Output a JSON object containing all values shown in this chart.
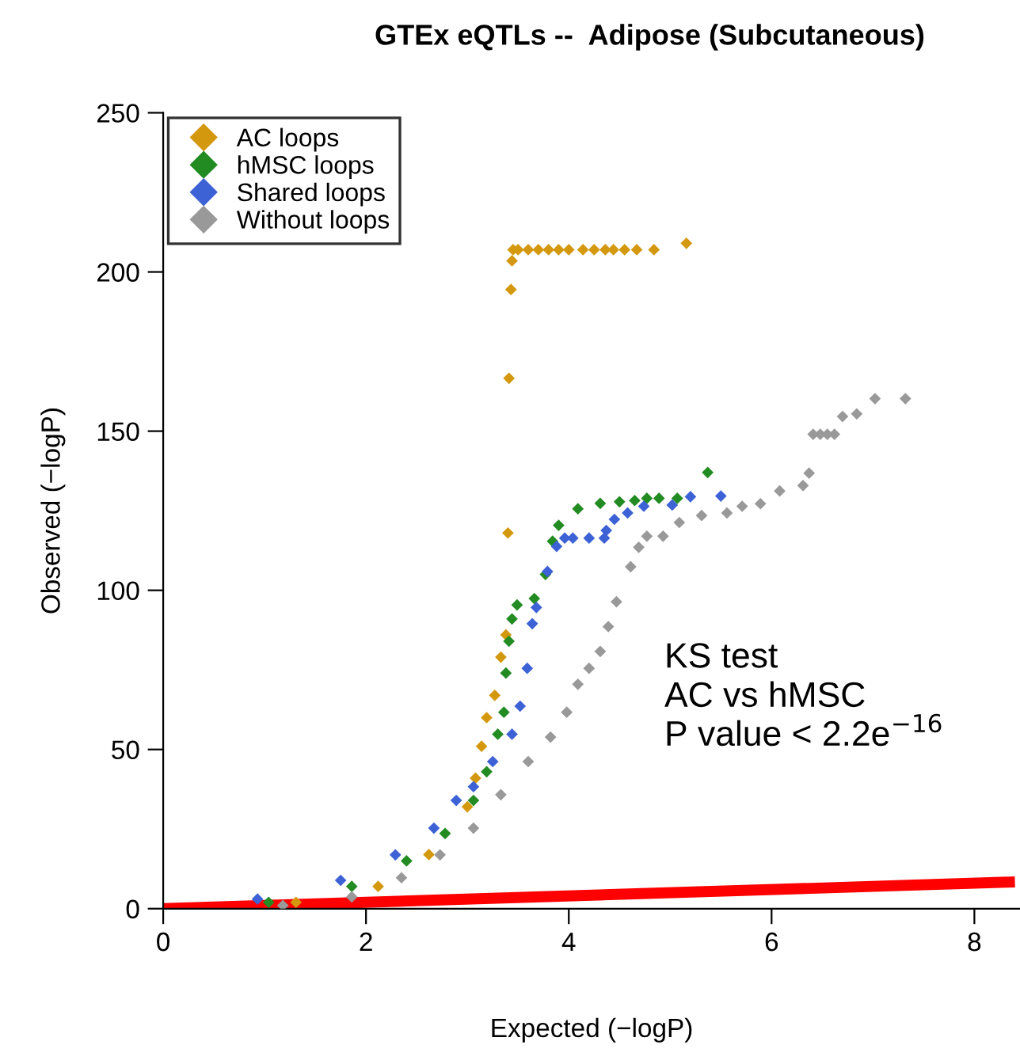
{
  "chart_data": {
    "type": "scatter",
    "title": "GTEx eQTLs --  Adipose (Subcutaneous)",
    "xlabel": "Expected (−logP)",
    "ylabel": "Observed (−logP)",
    "xlim": [
      0,
      8.45
    ],
    "ylim": [
      0,
      250
    ],
    "xticks": [
      0,
      2,
      4,
      6,
      8
    ],
    "yticks": [
      0,
      50,
      100,
      150,
      200,
      250
    ],
    "grid": false,
    "legend": "top left",
    "marker": "diamond",
    "annotations": [
      "KS test\nAC vs hMSC\nP value < 2.2e$^{−16}$"
    ],
    "series": [
      {
        "name": "AC loops",
        "color": "#d4980f",
        "x": [
          1.31,
          2.12,
          2.62,
          3.0,
          3.08,
          3.14,
          3.19,
          3.27,
          3.33,
          3.38,
          3.4,
          3.41,
          3.43,
          3.44,
          3.45,
          3.5,
          3.6,
          3.7,
          3.8,
          3.9,
          4.0,
          4.14,
          4.25,
          4.36,
          4.44,
          4.55,
          4.67,
          4.84,
          5.16
        ],
        "values": [
          2,
          7,
          17,
          32,
          41,
          51,
          60,
          67,
          79,
          86,
          118,
          166.6,
          194.5,
          203.5,
          207,
          207,
          207,
          207,
          207,
          207,
          207,
          207,
          207,
          207,
          207,
          207,
          207,
          207,
          209
        ]
      },
      {
        "name": "hMSC loops",
        "color": "#228b22",
        "x": [
          1.04,
          1.86,
          2.4,
          2.78,
          3.06,
          3.19,
          3.3,
          3.36,
          3.38,
          3.41,
          3.44,
          3.49,
          3.66,
          3.77,
          3.84,
          3.9,
          4.09,
          4.31,
          4.5,
          4.65,
          4.77,
          4.89,
          5.07,
          5.37
        ],
        "values": [
          2,
          7,
          15,
          23.6,
          34,
          43,
          54.8,
          61.7,
          74,
          84,
          91,
          95.4,
          97.4,
          105,
          115.4,
          120.4,
          125.6,
          127.3,
          127.8,
          128.2,
          128.9,
          128.9,
          128.9,
          137
        ]
      },
      {
        "name": "Shared loops",
        "color": "#3d62d6",
        "x": [
          0.93,
          1.75,
          2.29,
          2.67,
          2.89,
          3.06,
          3.25,
          3.44,
          3.52,
          3.59,
          3.64,
          3.68,
          3.79,
          3.88,
          3.96,
          4.04,
          4.2,
          4.35,
          4.37,
          4.45,
          4.58,
          4.74,
          5.02,
          5.2,
          5.5
        ],
        "values": [
          3,
          8.9,
          16.9,
          25.3,
          34,
          38.3,
          46.2,
          54.8,
          63.6,
          75.5,
          89.5,
          94.6,
          105.9,
          113.8,
          116.4,
          116.4,
          116.4,
          116.4,
          118.8,
          122.3,
          124.3,
          126.4,
          126.8,
          129.4,
          129.6
        ]
      },
      {
        "name": "Without loops",
        "color": "#999999",
        "x": [
          1.18,
          1.86,
          2.35,
          2.73,
          3.06,
          3.33,
          3.6,
          3.82,
          3.98,
          4.09,
          4.2,
          4.31,
          4.39,
          4.47,
          4.61,
          4.69,
          4.77,
          4.93,
          5.09,
          5.31,
          5.56,
          5.71,
          5.89,
          6.08,
          6.31,
          6.37,
          6.41,
          6.48,
          6.55,
          6.62,
          6.7,
          6.84,
          7.02,
          7.32
        ],
        "values": [
          1,
          3.7,
          9.7,
          16.9,
          25.3,
          35.8,
          46.2,
          53.9,
          61.7,
          70.5,
          75.5,
          80.8,
          88.6,
          96.4,
          107.4,
          113.5,
          117,
          117,
          121.3,
          123.5,
          124.3,
          126.4,
          127.2,
          131.2,
          132.9,
          136.8,
          149,
          149,
          149,
          149,
          154.6,
          155.4,
          160.2,
          160.2
        ]
      },
      {
        "type": "line",
        "marker": "none",
        "color": "#ff0000",
        "x": [
          0,
          8.4
        ],
        "values": [
          0,
          8.4
        ]
      }
    ]
  }
}
